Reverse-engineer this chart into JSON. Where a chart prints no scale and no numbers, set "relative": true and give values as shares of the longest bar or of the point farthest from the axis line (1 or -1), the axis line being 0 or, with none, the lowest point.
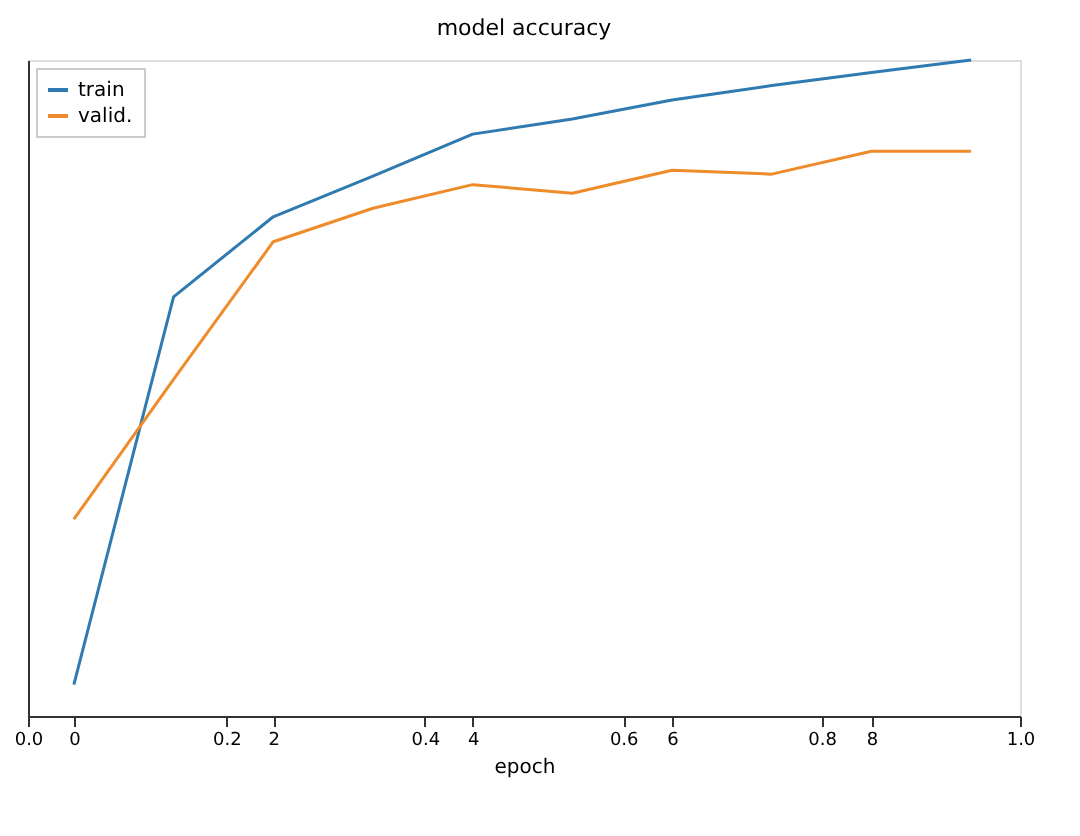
{
  "chart_data": {
    "type": "line",
    "title": "model accuracy",
    "xlabel": "epoch",
    "relative": true,
    "x": [
      0,
      1,
      2,
      3,
      4,
      5,
      6,
      7,
      8,
      9
    ],
    "xlim": [
      -0.46,
      9.49
    ],
    "xticks": [
      0,
      2,
      4,
      6,
      8
    ],
    "x2lim": [
      0,
      1
    ],
    "x2ticks": [
      {
        "value": 0,
        "label": "0.0"
      },
      0.2,
      0.4,
      0.6,
      0.8,
      {
        "value": 1,
        "label": "1.0"
      }
    ],
    "series": [
      {
        "name": "train",
        "color": "#2f7ab0",
        "values": [
          0.048,
          0.639,
          0.761,
          0.823,
          0.887,
          0.91,
          0.939,
          0.961,
          0.981,
          1
        ]
      },
      {
        "name": "valid.",
        "color": "#ee8b2a",
        "values": [
          0.3,
          0.513,
          0.723,
          0.774,
          0.81,
          0.797,
          0.832,
          0.826,
          0.861,
          0.861
        ]
      }
    ],
    "legend": "top left",
    "grid": false,
    "tick_labels": "x",
    "marker": "none",
    "line_style": "solid"
  }
}
